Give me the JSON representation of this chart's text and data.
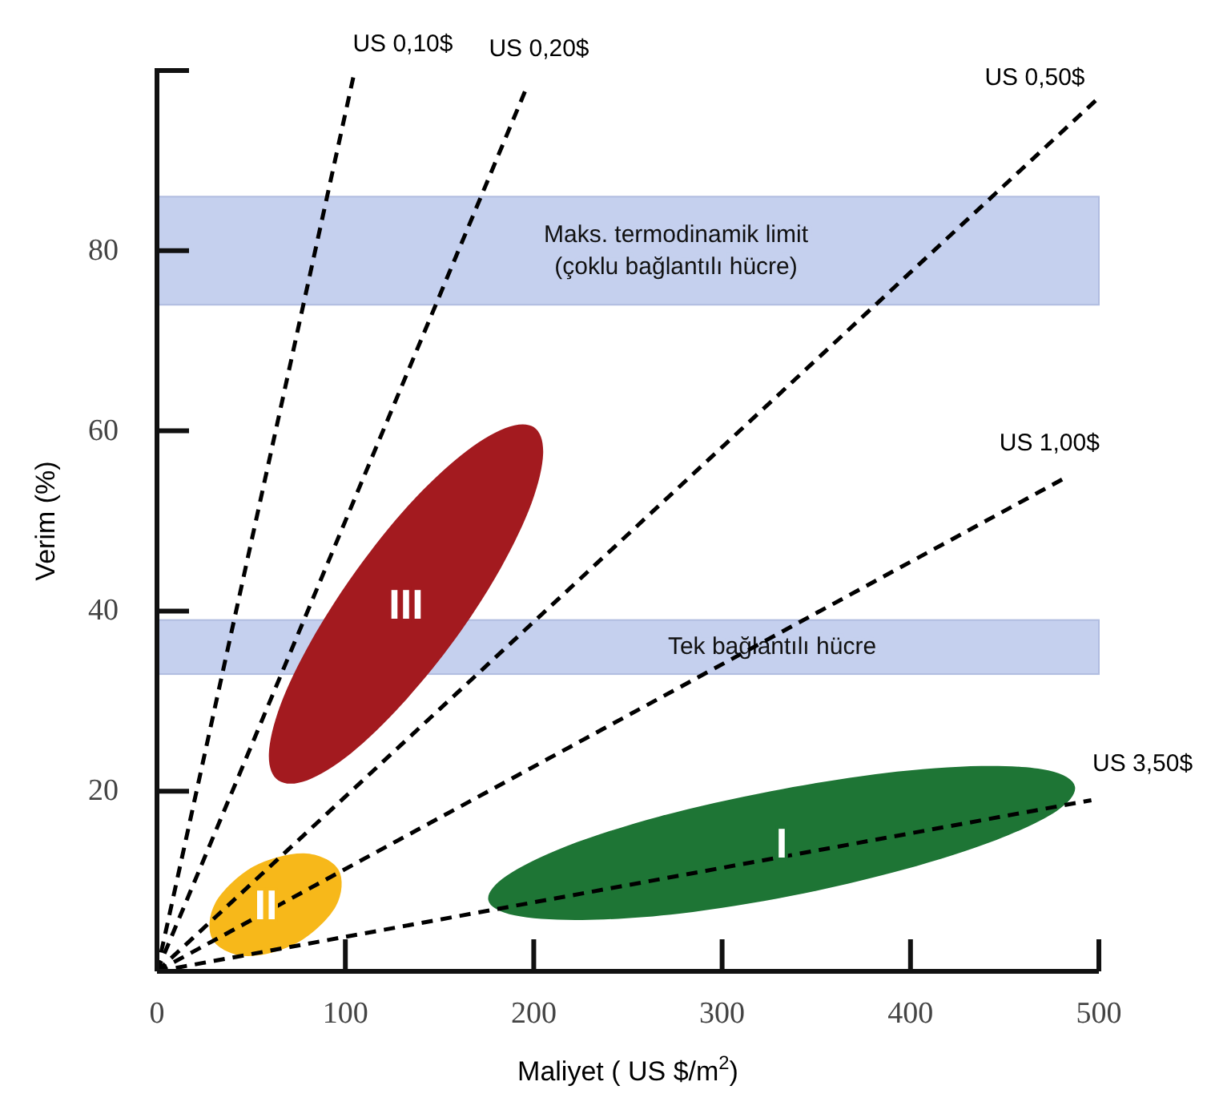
{
  "chart_data": {
    "type": "line",
    "xlabel": "Maliyet  ( US $/m$^{2}$)",
    "ylabel": "Verim (%)",
    "xlim": [
      0,
      500
    ],
    "ylim": [
      0,
      100
    ],
    "xticks": [
      0,
      100,
      200,
      300,
      400,
      500
    ],
    "yticks": [
      20,
      40,
      60,
      80
    ],
    "grid": false,
    "legend": false,
    "line_style": "dashed",
    "marker": "none",
    "bands": [
      {
        "axis": "y",
        "from": 74,
        "to": 86,
        "label": "Maks. termodinamik limit\n(çoklu bağlantılı hücre)",
        "color": "#c5d0ee"
      },
      {
        "axis": "y",
        "from": 33,
        "to": 39,
        "label": "Tek bağlantılı hücre",
        "color": "#c5d0ee"
      }
    ],
    "series": [
      {
        "name": "III",
        "type": "area",
        "color": "#a31a1f",
        "x": [
          200.1,
          205.0,
          198.9,
          182.6,
          158.7,
          130.7,
          103.0,
          79.7,
          64.4,
          59.4,
          65.6,
          81.9,
          105.8,
          133.8,
          161.5,
          184.8
        ],
        "values": [
          60.4,
          57.5,
          52.0,
          44.8,
          37.0,
          29.8,
          24.2,
          21.2,
          21.2,
          24.1,
          29.6,
          36.7,
          44.5,
          51.8,
          57.3,
          60.3
        ]
      },
      {
        "name": "II",
        "type": "area",
        "color": "#f7b81a",
        "x": [
          96.3,
          94.9,
          74.8,
          47.8,
          29.6,
          31.0,
          51.0,
          78.1
        ],
        "values": [
          11.3,
          7.2,
          3.2,
          1.7,
          3.5,
          7.6,
          11.6,
          13.1
        ]
      },
      {
        "name": "I",
        "type": "area",
        "color": "#1e7535",
        "x": [
          487.3,
          477.6,
          445.7,
          396.4,
          337.3,
          277.4,
          225.7,
          190.1,
          175.9,
          185.6,
          217.5,
          266.8,
          325.9,
          385.9,
          437.6,
          473.2
        ],
        "values": [
          20.5,
          17.8,
          14.6,
          11.3,
          8.4,
          6.4,
          5.7,
          6.2,
          7.9,
          10.6,
          13.9,
          17.2,
          20.0,
          22.0,
          22.8,
          22.3
        ]
      },
      {
        "name": "US 0,10$",
        "color": "#000000",
        "x": [
          0,
          105
        ],
        "values": [
          0,
          100
        ]
      },
      {
        "name": "US 0,20$",
        "color": "#000000",
        "x": [
          0,
          196
        ],
        "values": [
          0,
          98
        ]
      },
      {
        "name": "US 0,50$",
        "color": "#000000",
        "x": [
          0,
          500
        ],
        "values": [
          0,
          97
        ]
      },
      {
        "name": "US 1,00$",
        "color": "#000000",
        "x": [
          0,
          484
        ],
        "values": [
          0,
          55
        ]
      },
      {
        "name": "US 3,50$",
        "color": "#000000",
        "x": [
          0,
          496
        ],
        "values": [
          0,
          19
        ]
      }
    ]
  }
}
